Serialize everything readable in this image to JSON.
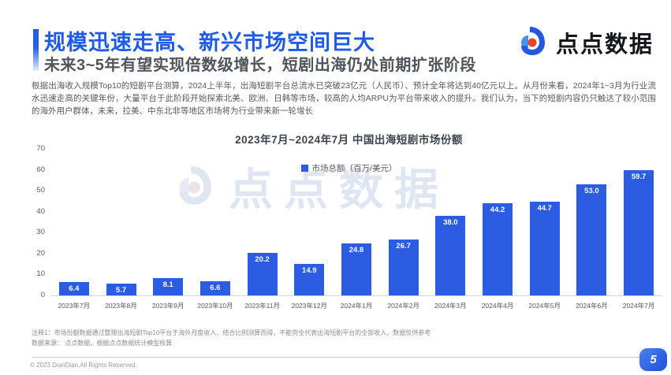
{
  "slide": {
    "title": "规模迅速走高、新兴市场空间巨大",
    "subtitle": "未来3~5年有望实现倍数级增长，短剧出海仍处前期扩张阶段",
    "body": "根据出海收入规模Top10的短剧平台测算，2024上半年，出海短剧平台总流水已突破23亿元（人民币）、预计全年将达到40亿元以上。从月份来看，2024年1~3月为行业流水迅速走高的关键年份，大量平台于此阶段开始探索北美、欧洲、日韩等市场，较高的人均ARPU为平台带来收入的提升。我们认为，当下的短剧内容仍只触达了较小范围的海外用户群体，未来，拉美、中东北非等地区市场将为行业带来新一轮增长",
    "notes": [
      "注释1：市场份额数据通过整理出海短剧Top10平台于海外月度收入、结合比例测算而得，不能完全代表出海短剧平台的全部收入，数据仅供参考",
      "数据来源：  点点数据，根据点点数据统计模型核算"
    ],
    "copyright": "© 2023 DianDian.All Rights Reserved.",
    "page_number": "5"
  },
  "logo": {
    "text": "点点数据"
  },
  "watermark": {
    "text": "点点数据"
  },
  "colors": {
    "title_blue": "#1F5AE8",
    "bar_blue": "#2B5CE2",
    "subtitle_gray": "#50555B",
    "logo_red": "#E8412C"
  },
  "chart_data": {
    "type": "bar",
    "title": "2023年7月~2024年7月 中国出海短剧市场份额",
    "legend": "市场总额（百万/美元）",
    "legend_position": "top-center-inside",
    "categories": [
      "2023年7月",
      "2023年8月",
      "2023年9月",
      "2023年10月",
      "2023年11月",
      "2023年12月",
      "2024年1月",
      "2024年2月",
      "2024年3月",
      "2024年4月",
      "2024年5月",
      "2024年6月",
      "2024年7月"
    ],
    "values": [
      6.4,
      5.7,
      8.1,
      6.6,
      20.2,
      14.9,
      24.8,
      26.7,
      38.0,
      44.2,
      44.7,
      53.0,
      59.7
    ],
    "xlabel": "",
    "ylabel": "",
    "ylim": [
      0,
      70
    ],
    "yticks": [
      0,
      10,
      20,
      30,
      40,
      50,
      60,
      70
    ],
    "grid": false,
    "bar_color": "#2B5CE2",
    "value_label_color": "#ffffff"
  }
}
